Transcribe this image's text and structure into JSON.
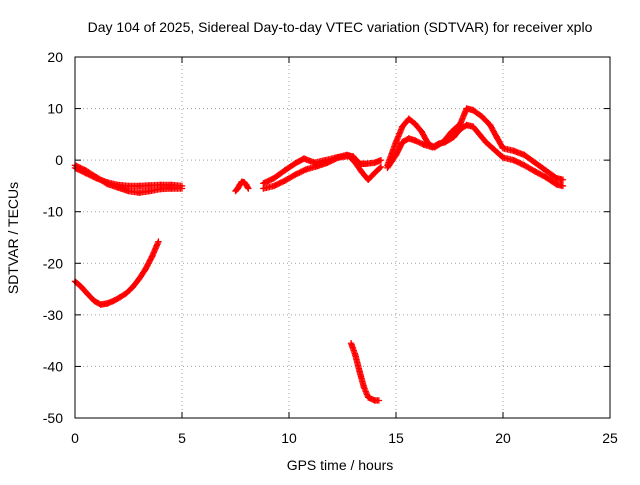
{
  "chart_data": {
    "type": "scatter",
    "title": "Day 104 of 2025, Sidereal Day-to-day VTEC variation (SDTVAR) for receiver xplo",
    "xlabel": "GPS time / hours",
    "ylabel": "SDTVAR / TECUs",
    "xlim": [
      0,
      25
    ],
    "ylim": [
      -50,
      20
    ],
    "xticks": [
      0,
      5,
      10,
      15,
      20,
      25
    ],
    "yticks": [
      -50,
      -40,
      -30,
      -20,
      -10,
      0,
      10,
      20
    ],
    "xtick_labels": [
      "0",
      "5",
      "10",
      "15",
      "20",
      "25"
    ],
    "ytick_labels": [
      "-50",
      "-40",
      "-30",
      "-20",
      "-10",
      "0",
      "10",
      "20"
    ],
    "grid": true,
    "marker": "+",
    "color": "#ff0000",
    "series": [
      {
        "name": "track-1-upper",
        "points": [
          [
            0.0,
            -1.5
          ],
          [
            0.5,
            -2.5
          ],
          [
            1.0,
            -3.5
          ],
          [
            1.5,
            -4.3
          ],
          [
            2.0,
            -4.8
          ],
          [
            2.5,
            -5.0
          ],
          [
            3.0,
            -5.0
          ],
          [
            3.5,
            -4.9
          ],
          [
            4.0,
            -4.8
          ],
          [
            4.5,
            -4.8
          ],
          [
            5.0,
            -5.0
          ]
        ]
      },
      {
        "name": "track-1-lower",
        "points": [
          [
            0.0,
            -1.0
          ],
          [
            0.5,
            -2.0
          ],
          [
            1.0,
            -3.3
          ],
          [
            1.5,
            -4.6
          ],
          [
            2.0,
            -5.3
          ],
          [
            2.5,
            -6.0
          ],
          [
            3.0,
            -6.3
          ],
          [
            3.5,
            -6.0
          ],
          [
            4.0,
            -5.6
          ],
          [
            4.5,
            -5.5
          ],
          [
            5.0,
            -5.5
          ]
        ]
      },
      {
        "name": "track-2",
        "points": [
          [
            0.0,
            -23.5
          ],
          [
            0.3,
            -24.6
          ],
          [
            0.6,
            -26.0
          ],
          [
            0.9,
            -27.3
          ],
          [
            1.2,
            -28.0
          ],
          [
            1.5,
            -27.8
          ],
          [
            1.8,
            -27.3
          ],
          [
            2.1,
            -26.6
          ],
          [
            2.4,
            -25.8
          ],
          [
            2.7,
            -24.6
          ],
          [
            3.0,
            -23.0
          ],
          [
            3.3,
            -21.1
          ],
          [
            3.6,
            -18.7
          ],
          [
            3.9,
            -15.8
          ]
        ]
      },
      {
        "name": "track-3",
        "points": [
          [
            7.5,
            -6.0
          ],
          [
            7.6,
            -5.5
          ],
          [
            7.7,
            -4.8
          ],
          [
            7.8,
            -4.2
          ],
          [
            7.9,
            -4.3
          ],
          [
            8.0,
            -4.8
          ],
          [
            8.1,
            -5.5
          ]
        ]
      },
      {
        "name": "track-4-upper",
        "points": [
          [
            8.8,
            -4.5
          ],
          [
            9.3,
            -3.5
          ],
          [
            9.8,
            -2.0
          ],
          [
            10.3,
            -0.6
          ],
          [
            10.7,
            0.3
          ],
          [
            11.2,
            -0.5
          ],
          [
            11.7,
            0.0
          ],
          [
            12.2,
            0.5
          ],
          [
            12.7,
            1.0
          ],
          [
            13.0,
            0.7
          ],
          [
            13.3,
            -0.7
          ],
          [
            13.6,
            -0.7
          ],
          [
            14.0,
            -0.5
          ],
          [
            14.3,
            0.0
          ]
        ]
      },
      {
        "name": "track-4-lower",
        "points": [
          [
            8.8,
            -5.5
          ],
          [
            9.3,
            -5.0
          ],
          [
            9.8,
            -4.0
          ],
          [
            10.3,
            -2.8
          ],
          [
            10.8,
            -1.8
          ],
          [
            11.3,
            -1.2
          ],
          [
            11.8,
            -0.5
          ],
          [
            12.3,
            0.5
          ],
          [
            12.8,
            0.8
          ],
          [
            13.1,
            -0.5
          ],
          [
            13.4,
            -2.3
          ],
          [
            13.7,
            -3.8
          ],
          [
            14.0,
            -2.5
          ],
          [
            14.3,
            -1.3
          ]
        ]
      },
      {
        "name": "track-5",
        "points": [
          [
            12.9,
            -35.5
          ],
          [
            13.1,
            -37.8
          ],
          [
            13.3,
            -41.0
          ],
          [
            13.5,
            -44.0
          ],
          [
            13.7,
            -46.0
          ],
          [
            14.0,
            -46.6
          ],
          [
            14.2,
            -46.6
          ]
        ]
      },
      {
        "name": "track-6-upper",
        "points": [
          [
            14.6,
            -1.0
          ],
          [
            15.0,
            3.5
          ],
          [
            15.3,
            6.5
          ],
          [
            15.6,
            8.0
          ],
          [
            15.9,
            7.0
          ],
          [
            16.2,
            5.5
          ],
          [
            16.5,
            3.2
          ],
          [
            16.8,
            2.5
          ],
          [
            17.2,
            3.5
          ],
          [
            17.6,
            5.5
          ],
          [
            18.0,
            7.0
          ],
          [
            18.3,
            10.0
          ],
          [
            18.6,
            9.7
          ],
          [
            19.0,
            8.5
          ],
          [
            19.4,
            6.8
          ],
          [
            19.7,
            4.5
          ],
          [
            20.0,
            2.3
          ],
          [
            20.5,
            1.8
          ],
          [
            21.0,
            1.0
          ],
          [
            21.5,
            -0.5
          ],
          [
            22.0,
            -2.0
          ],
          [
            22.5,
            -3.5
          ],
          [
            22.8,
            -3.8
          ]
        ]
      },
      {
        "name": "track-6-lower",
        "points": [
          [
            14.6,
            -1.5
          ],
          [
            15.0,
            1.0
          ],
          [
            15.3,
            3.5
          ],
          [
            15.6,
            4.2
          ],
          [
            15.9,
            3.8
          ],
          [
            16.3,
            3.0
          ],
          [
            16.7,
            2.5
          ],
          [
            17.0,
            3.2
          ],
          [
            17.3,
            3.5
          ],
          [
            17.7,
            4.5
          ],
          [
            18.0,
            6.0
          ],
          [
            18.3,
            6.8
          ],
          [
            18.6,
            6.5
          ],
          [
            18.9,
            5.0
          ],
          [
            19.2,
            3.5
          ],
          [
            19.6,
            2.0
          ],
          [
            20.0,
            0.5
          ],
          [
            20.5,
            0.0
          ],
          [
            21.0,
            -1.0
          ],
          [
            21.5,
            -2.2
          ],
          [
            22.0,
            -3.3
          ],
          [
            22.5,
            -4.7
          ],
          [
            22.8,
            -5.0
          ]
        ]
      }
    ]
  }
}
